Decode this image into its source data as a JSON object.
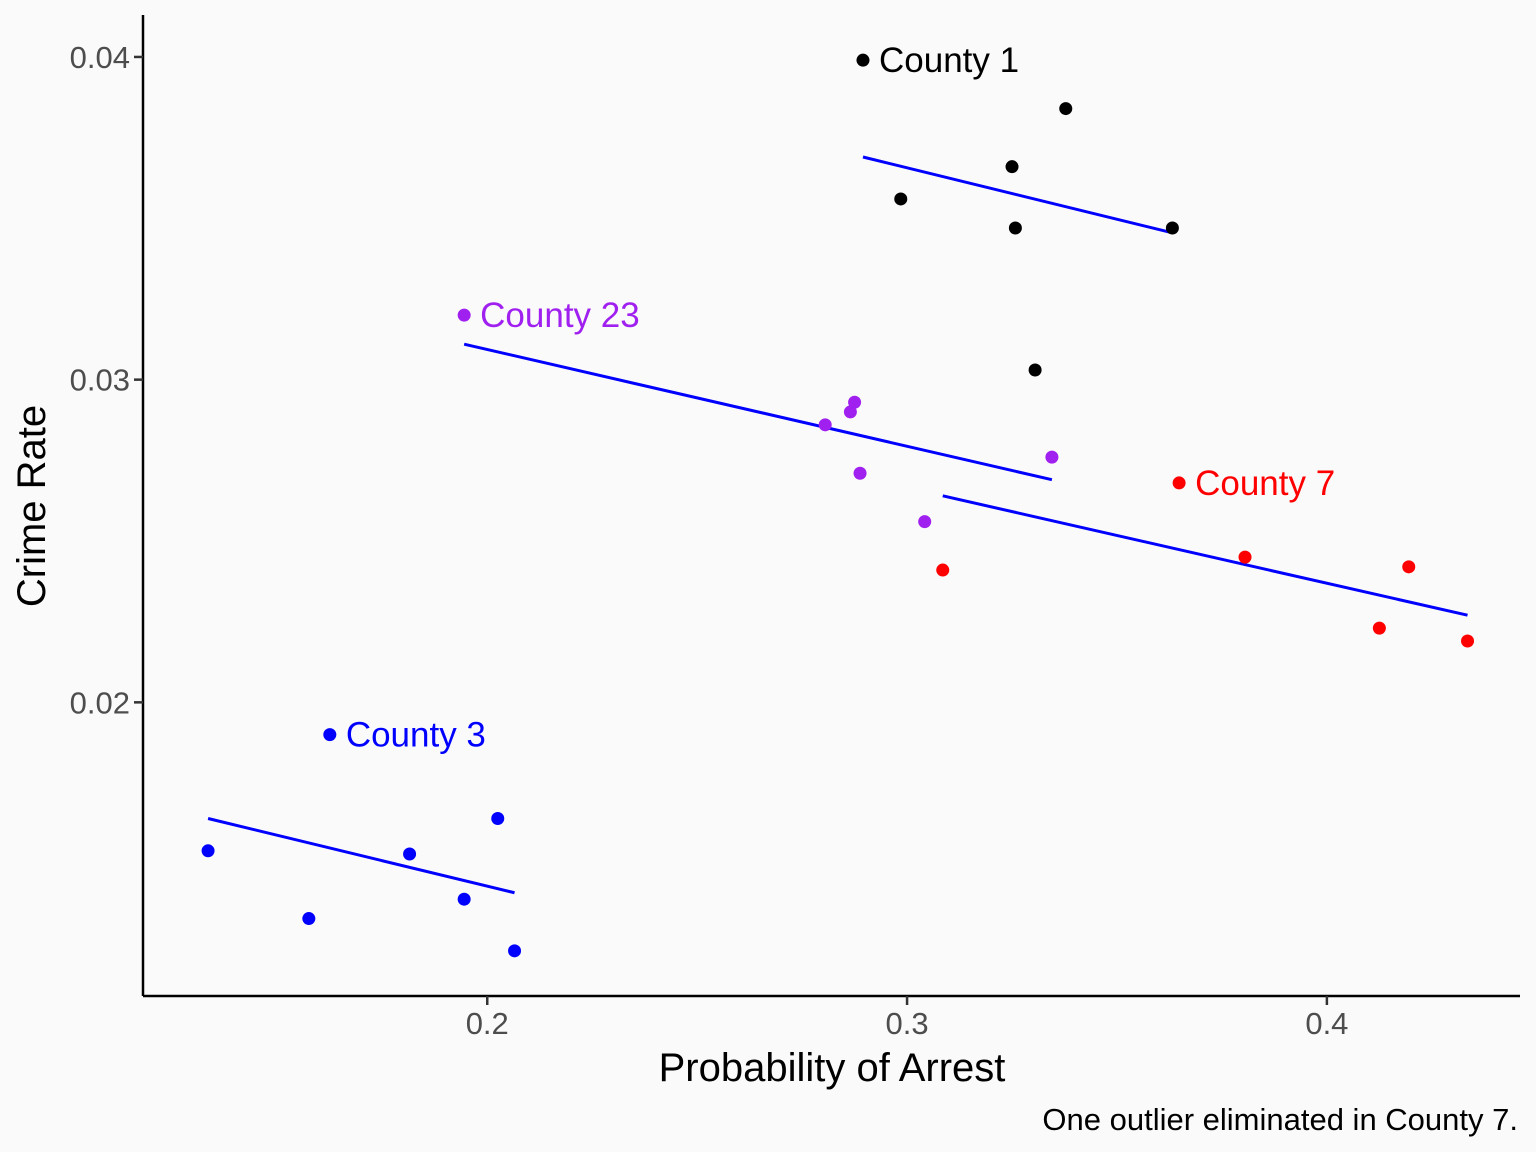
{
  "chart_data": {
    "type": "scatter",
    "xlabel": "Probability of Arrest",
    "ylabel": "Crime Rate",
    "caption": "One outlier eliminated in County 7.",
    "xlim": [
      0.118,
      0.446
    ],
    "ylim": [
      0.0109,
      0.0413
    ],
    "x_ticks": [
      {
        "value": 0.2,
        "label": "0.2"
      },
      {
        "value": 0.3,
        "label": "0.3"
      },
      {
        "value": 0.4,
        "label": "0.4"
      }
    ],
    "y_ticks": [
      {
        "value": 0.02,
        "label": "0.02"
      },
      {
        "value": 0.03,
        "label": "0.03"
      },
      {
        "value": 0.04,
        "label": "0.04"
      }
    ],
    "grid": false,
    "legend": "none",
    "series": [
      {
        "name": "County 1",
        "color": "#000000",
        "points": [
          {
            "x": 0.2895,
            "y": 0.0399
          },
          {
            "x": 0.2985,
            "y": 0.0356
          },
          {
            "x": 0.325,
            "y": 0.0366
          },
          {
            "x": 0.3258,
            "y": 0.0347
          },
          {
            "x": 0.3305,
            "y": 0.0303
          },
          {
            "x": 0.3378,
            "y": 0.0384
          },
          {
            "x": 0.3632,
            "y": 0.0347
          }
        ],
        "fit": {
          "x": [
            0.2895,
            0.3632
          ],
          "y": [
            0.0369,
            0.03455
          ]
        },
        "label": {
          "text": "County 1",
          "x": 0.2895,
          "y": 0.0399
        }
      },
      {
        "name": "County 3",
        "color": "#0000ff",
        "points": [
          {
            "x": 0.1335,
            "y": 0.0154
          },
          {
            "x": 0.1575,
            "y": 0.0133
          },
          {
            "x": 0.1625,
            "y": 0.019
          },
          {
            "x": 0.1815,
            "y": 0.0153
          },
          {
            "x": 0.1945,
            "y": 0.0139
          },
          {
            "x": 0.2025,
            "y": 0.0164
          },
          {
            "x": 0.2065,
            "y": 0.0123
          }
        ],
        "fit": {
          "x": [
            0.1335,
            0.2065
          ],
          "y": [
            0.0164,
            0.0141
          ]
        },
        "label": {
          "text": "County 3",
          "x": 0.1625,
          "y": 0.019
        }
      },
      {
        "name": "County 7",
        "color": "#ff0000",
        "points": [
          {
            "x": 0.3085,
            "y": 0.0241
          },
          {
            "x": 0.3648,
            "y": 0.0268
          },
          {
            "x": 0.3805,
            "y": 0.0245
          },
          {
            "x": 0.4125,
            "y": 0.0223
          },
          {
            "x": 0.4195,
            "y": 0.0242
          },
          {
            "x": 0.4335,
            "y": 0.0219
          }
        ],
        "fit": {
          "x": [
            0.3085,
            0.4335
          ],
          "y": [
            0.0264,
            0.0227
          ]
        },
        "label": {
          "text": "County 7",
          "x": 0.3648,
          "y": 0.0268
        }
      },
      {
        "name": "County 23",
        "color": "#a020f0",
        "points": [
          {
            "x": 0.1945,
            "y": 0.032
          },
          {
            "x": 0.2805,
            "y": 0.0286
          },
          {
            "x": 0.2865,
            "y": 0.029
          },
          {
            "x": 0.2875,
            "y": 0.0293
          },
          {
            "x": 0.2888,
            "y": 0.0271
          },
          {
            "x": 0.3042,
            "y": 0.0256
          },
          {
            "x": 0.3345,
            "y": 0.0276
          }
        ],
        "fit": {
          "x": [
            0.1945,
            0.3345
          ],
          "y": [
            0.0311,
            0.0269
          ]
        },
        "label": {
          "text": "County 23",
          "x": 0.1945,
          "y": 0.032
        }
      }
    ]
  }
}
